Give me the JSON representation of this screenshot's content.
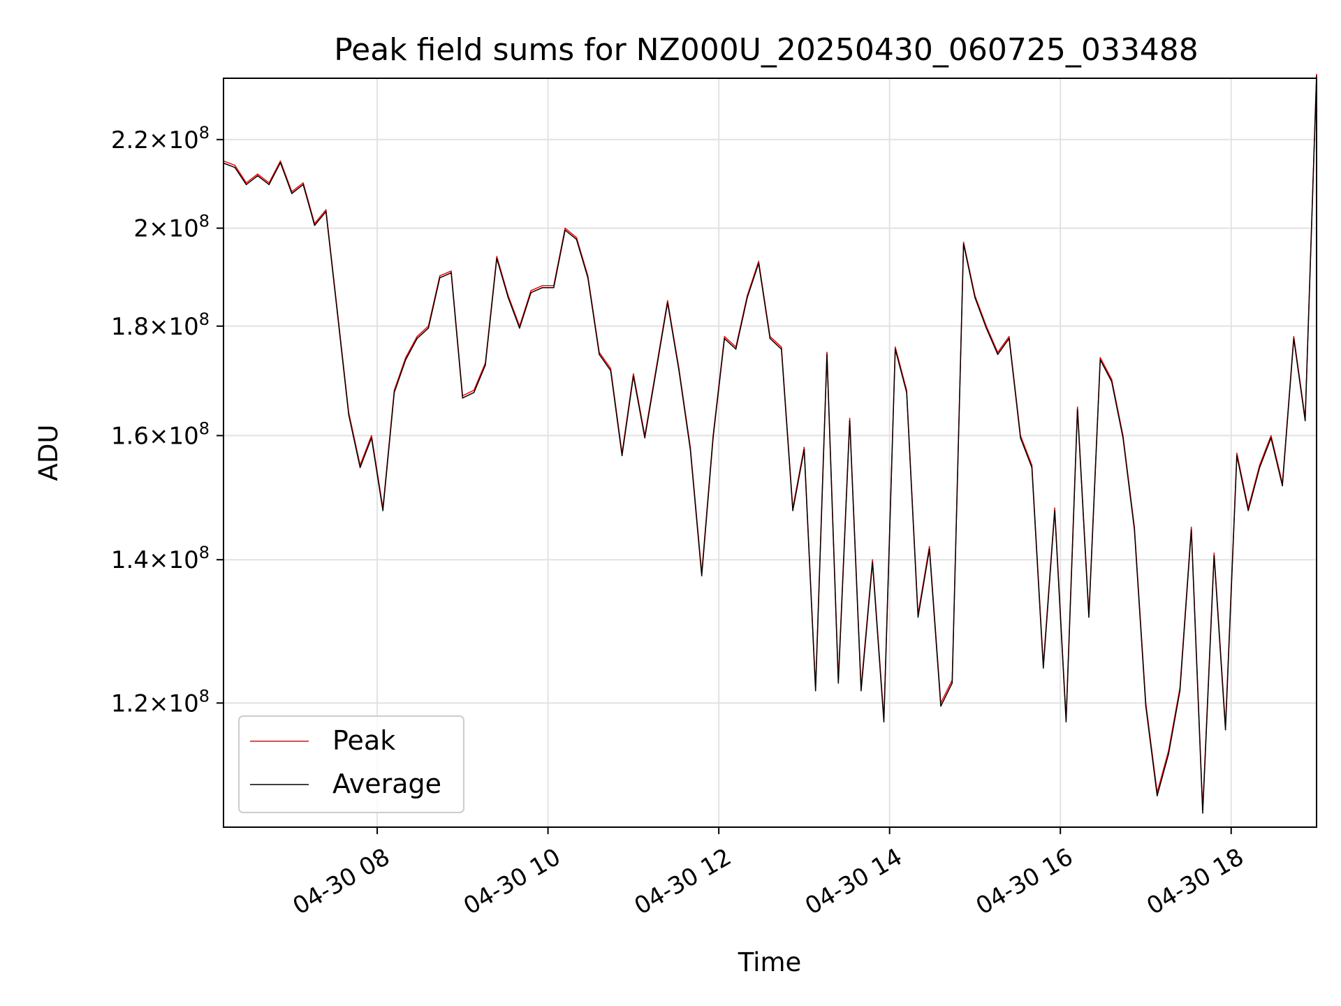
{
  "chart_data": {
    "type": "line",
    "title": "Peak field sums for NZ000U_20250430_060725_033488",
    "xlabel": "Time",
    "ylabel": "ADU",
    "y_scale": "log",
    "ylim": [
      105000000,
      235000000
    ],
    "xlim": [
      "2025-04-30 06:12",
      "2025-04-30 19:00"
    ],
    "grid": true,
    "legend_position": "lower left",
    "x_ticks": [
      {
        "value": "2025-04-30 08:00",
        "label": "04-30 08"
      },
      {
        "value": "2025-04-30 10:00",
        "label": "04-30 10"
      },
      {
        "value": "2025-04-30 12:00",
        "label": "04-30 12"
      },
      {
        "value": "2025-04-30 14:00",
        "label": "04-30 14"
      },
      {
        "value": "2025-04-30 16:00",
        "label": "04-30 16"
      },
      {
        "value": "2025-04-30 18:00",
        "label": "04-30 18"
      }
    ],
    "y_ticks": [
      {
        "value": 120000000,
        "mantissa": "1.2",
        "exponent": "8"
      },
      {
        "value": 140000000,
        "mantissa": "1.4",
        "exponent": "8"
      },
      {
        "value": 160000000,
        "mantissa": "1.6",
        "exponent": "8"
      },
      {
        "value": 180000000,
        "mantissa": "1.8",
        "exponent": "8"
      },
      {
        "value": 200000000,
        "mantissa": "2",
        "exponent": "8"
      },
      {
        "value": 220000000,
        "mantissa": "2.2",
        "exponent": "8"
      }
    ],
    "x": [
      "2025-04-30 06:12",
      "2025-04-30 06:20",
      "2025-04-30 06:28",
      "2025-04-30 06:36",
      "2025-04-30 06:44",
      "2025-04-30 06:52",
      "2025-04-30 07:00",
      "2025-04-30 07:08",
      "2025-04-30 07:16",
      "2025-04-30 07:24",
      "2025-04-30 07:32",
      "2025-04-30 07:40",
      "2025-04-30 07:48",
      "2025-04-30 07:56",
      "2025-04-30 08:04",
      "2025-04-30 08:12",
      "2025-04-30 08:20",
      "2025-04-30 08:28",
      "2025-04-30 08:36",
      "2025-04-30 08:44",
      "2025-04-30 08:52",
      "2025-04-30 09:00",
      "2025-04-30 09:08",
      "2025-04-30 09:16",
      "2025-04-30 09:24",
      "2025-04-30 09:32",
      "2025-04-30 09:40",
      "2025-04-30 09:48",
      "2025-04-30 09:56",
      "2025-04-30 10:04",
      "2025-04-30 10:12",
      "2025-04-30 10:20",
      "2025-04-30 10:28",
      "2025-04-30 10:36",
      "2025-04-30 10:44",
      "2025-04-30 10:52",
      "2025-04-30 11:00",
      "2025-04-30 11:08",
      "2025-04-30 11:16",
      "2025-04-30 11:24",
      "2025-04-30 11:32",
      "2025-04-30 11:40",
      "2025-04-30 11:48",
      "2025-04-30 11:56",
      "2025-04-30 12:04",
      "2025-04-30 12:12",
      "2025-04-30 12:20",
      "2025-04-30 12:28",
      "2025-04-30 12:36",
      "2025-04-30 12:44",
      "2025-04-30 12:52",
      "2025-04-30 13:00",
      "2025-04-30 13:08",
      "2025-04-30 13:16",
      "2025-04-30 13:24",
      "2025-04-30 13:32",
      "2025-04-30 13:40",
      "2025-04-30 13:48",
      "2025-04-30 13:56",
      "2025-04-30 14:04",
      "2025-04-30 14:12",
      "2025-04-30 14:20",
      "2025-04-30 14:28",
      "2025-04-30 14:36",
      "2025-04-30 14:44",
      "2025-04-30 14:52",
      "2025-04-30 15:00",
      "2025-04-30 15:08",
      "2025-04-30 15:16",
      "2025-04-30 15:24",
      "2025-04-30 15:32",
      "2025-04-30 15:40",
      "2025-04-30 15:48",
      "2025-04-30 15:56",
      "2025-04-30 16:04",
      "2025-04-30 16:12",
      "2025-04-30 16:20",
      "2025-04-30 16:28",
      "2025-04-30 16:36",
      "2025-04-30 16:44",
      "2025-04-30 16:52",
      "2025-04-30 17:00",
      "2025-04-30 17:08",
      "2025-04-30 17:16",
      "2025-04-30 17:24",
      "2025-04-30 17:32",
      "2025-04-30 17:40",
      "2025-04-30 17:48",
      "2025-04-30 17:56",
      "2025-04-30 18:04",
      "2025-04-30 18:12",
      "2025-04-30 18:20",
      "2025-04-30 18:28",
      "2025-04-30 18:36",
      "2025-04-30 18:44",
      "2025-04-30 18:52",
      "2025-04-30 19:00"
    ],
    "series": [
      {
        "name": "Peak",
        "color": "#ff0000",
        "values": [
          215000000,
          214000000,
          210000000,
          212000000,
          210000000,
          215000000,
          208000000,
          210000000,
          201000000,
          204000000,
          183000000,
          164000000,
          155000000,
          160000000,
          148000000,
          168000000,
          174000000,
          178000000,
          180000000,
          190000000,
          191000000,
          167000000,
          168000000,
          173000000,
          194000000,
          186000000,
          180000000,
          187000000,
          188000000,
          188000000,
          200000000,
          198000000,
          190000000,
          175000000,
          172000000,
          157000000,
          171000000,
          160000000,
          172000000,
          185000000,
          172000000,
          158000000,
          138000000,
          160000000,
          178000000,
          176000000,
          186000000,
          193000000,
          178000000,
          176000000,
          148000000,
          158000000,
          122000000,
          175000000,
          123000000,
          163000000,
          122000000,
          140000000,
          118000000,
          176000000,
          168000000,
          132000000,
          142000000,
          120000000,
          123000000,
          197000000,
          186000000,
          180000000,
          175000000,
          178000000,
          160000000,
          155000000,
          125000000,
          148000000,
          118000000,
          165000000,
          132000000,
          174000000,
          170000000,
          160000000,
          145000000,
          120000000,
          109000000,
          114000000,
          122000000,
          145000000,
          107000000,
          141000000,
          117000000,
          157000000,
          148000000,
          155000000,
          160000000,
          152000000,
          178000000,
          163000000,
          236000000
        ]
      },
      {
        "name": "Average",
        "color": "#000000",
        "values": [
          214500000,
          213500000,
          209600000,
          211600000,
          209600000,
          214600000,
          207600000,
          209600000,
          200600000,
          203600000,
          182600000,
          163600000,
          154600000,
          159600000,
          147600000,
          167600000,
          173600000,
          177600000,
          179600000,
          189600000,
          190600000,
          166600000,
          167600000,
          172600000,
          193600000,
          185600000,
          179600000,
          186600000,
          187600000,
          187600000,
          199600000,
          197600000,
          189600000,
          174600000,
          171600000,
          156600000,
          170600000,
          159600000,
          171600000,
          184600000,
          171600000,
          157600000,
          137600000,
          159600000,
          177600000,
          175600000,
          185600000,
          192600000,
          177600000,
          175600000,
          147600000,
          157600000,
          121600000,
          174600000,
          122600000,
          162600000,
          121600000,
          139600000,
          117600000,
          175600000,
          167600000,
          131600000,
          141600000,
          119600000,
          122600000,
          196600000,
          185600000,
          179600000,
          174600000,
          177600000,
          159600000,
          154600000,
          124600000,
          147600000,
          117600000,
          164600000,
          131600000,
          173600000,
          169600000,
          159600000,
          144600000,
          119600000,
          108600000,
          113600000,
          121600000,
          144600000,
          106600000,
          140600000,
          116600000,
          156600000,
          147600000,
          154600000,
          159600000,
          151600000,
          177600000,
          162600000,
          235600000
        ]
      }
    ]
  }
}
